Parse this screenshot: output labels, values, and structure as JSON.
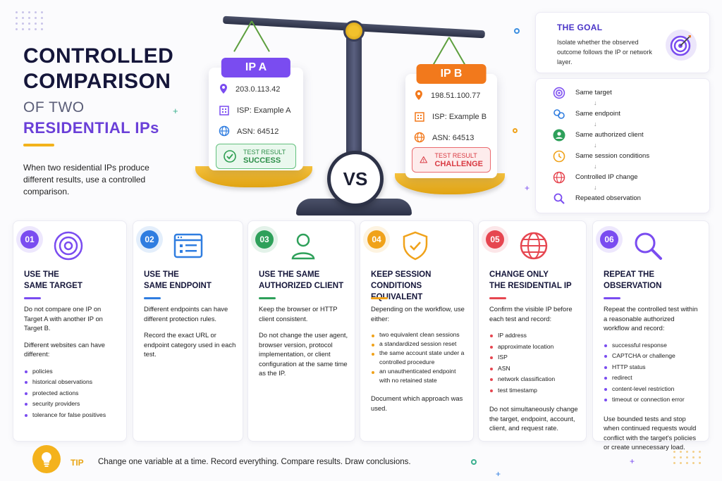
{
  "title": {
    "line1": "CONTROLLED",
    "line2": "COMPARISON",
    "line3": "OF TWO",
    "line4": "RESIDENTIAL IPs"
  },
  "intro": "When two residential IPs produce different results, use a controlled comparison.",
  "scale": {
    "vs": "VS",
    "ip_a": {
      "label": "IP A",
      "address": "203.0.113.42",
      "isp": "ISP: Example A",
      "asn": "ASN: 64512",
      "result_caption": "TEST RESULT",
      "result_value": "SUCCESS",
      "color": "#7a4cf0"
    },
    "ip_b": {
      "label": "IP B",
      "address": "198.51.100.77",
      "isp": "ISP: Example B",
      "asn": "ASN: 64513",
      "result_caption": "TEST RESULT",
      "result_value": "CHALLENGE",
      "color": "#f2791c"
    }
  },
  "goal": {
    "title": "THE GOAL",
    "text": "Isolate whether the observed outcome follows the IP or network layer."
  },
  "checklist": [
    {
      "label": "Same target",
      "icon": "target-icon"
    },
    {
      "label": "Same endpoint",
      "icon": "link-icon"
    },
    {
      "label": "Same authorized client",
      "icon": "user-icon"
    },
    {
      "label": "Same session conditions",
      "icon": "clock-icon"
    },
    {
      "label": "Controlled IP change",
      "icon": "globe-icon"
    },
    {
      "label": "Repeated observation",
      "icon": "search-icon"
    }
  ],
  "checklist_arrow": "↓",
  "steps": [
    {
      "num": "01",
      "color": "#7a4cf0",
      "title_l1": "USE THE",
      "title_l2": "SAME TARGET",
      "p1": "Do not compare one IP on Target A with another IP on Target B.",
      "p2": "Different websites can have different:",
      "bullets": [
        "policies",
        "historical observations",
        "protected actions",
        "security providers",
        "tolerance for false positives"
      ]
    },
    {
      "num": "02",
      "color": "#2f7de0",
      "title_l1": "USE THE",
      "title_l2": "SAME ENDPOINT",
      "p1": "Different endpoints can have different protection rules.",
      "p2": "Record the exact URL or endpoint category used in each test."
    },
    {
      "num": "03",
      "color": "#2ea05a",
      "title_l1": "USE THE SAME",
      "title_l2": "AUTHORIZED CLIENT",
      "p1": "Keep the browser or HTTP client consistent.",
      "p2": "Do not change the user agent, browser version, protocol implementation, or client configuration at the same time as the IP."
    },
    {
      "num": "04",
      "color": "#f0a21a",
      "title_l1": "KEEP SESSION",
      "title_l2": "CONDITIONS EQUIVALENT",
      "p1": "Depending on the workflow, use either:",
      "bullets": [
        "two equivalent clean sessions",
        "a standardized session reset",
        "the same account state under a controlled procedure",
        "an unauthenticated endpoint with no retained state"
      ],
      "p2": "Document which approach was used."
    },
    {
      "num": "05",
      "color": "#e64650",
      "title_l1": "CHANGE ONLY",
      "title_l2": "THE RESIDENTIAL IP",
      "p1": "Confirm the visible IP before each test and record:",
      "bullets": [
        "IP address",
        "approximate location",
        "ISP",
        "ASN",
        "network classification",
        "test timestamp"
      ],
      "p2": "Do not simultaneously change the target, endpoint, account, client, and request rate."
    },
    {
      "num": "06",
      "color": "#7a4cf0",
      "title_l1": "REPEAT THE",
      "title_l2": "OBSERVATION",
      "p1": "Repeat the controlled test within a reasonable authorized workflow and record:",
      "bullets": [
        "successful response",
        "CAPTCHA or challenge",
        "HTTP status",
        "redirect",
        "content-level restriction",
        "timeout or connection error"
      ],
      "p2": "Use bounded tests and stop when continued requests would conflict with the target's policies or create unnecessary load."
    }
  ],
  "tip": {
    "label": "TIP",
    "text": "Change one variable at a time. Record everything. Compare results. Draw conclusions."
  }
}
